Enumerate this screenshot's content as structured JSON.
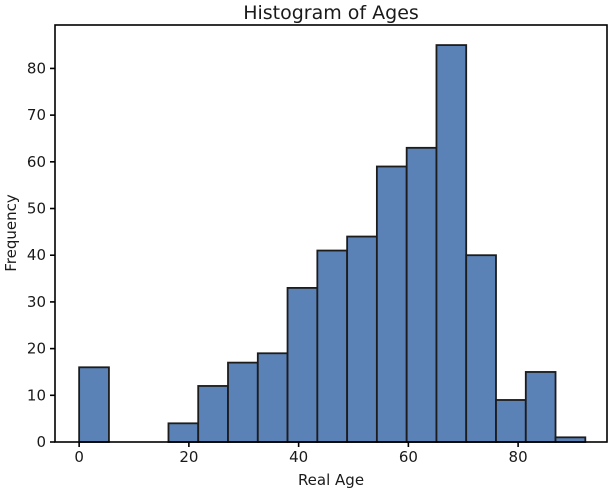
{
  "chart_data": {
    "type": "bar",
    "subtype": "histogram",
    "title": "Histogram of Ages",
    "xlabel": "Real Age",
    "ylabel": "Frequency",
    "bin_edges": [
      0,
      5.43,
      10.85,
      16.28,
      21.7,
      27.13,
      32.56,
      37.98,
      43.41,
      48.84,
      54.26,
      59.69,
      65.12,
      70.54,
      75.97,
      81.4,
      86.82,
      92.25
    ],
    "counts": [
      16,
      0,
      0,
      4,
      12,
      17,
      19,
      33,
      41,
      44,
      59,
      63,
      85,
      40,
      9,
      15,
      1
    ],
    "xticks": [
      0,
      20,
      40,
      60,
      80
    ],
    "yticks": [
      0,
      10,
      20,
      30,
      40,
      50,
      60,
      70,
      80
    ],
    "xlim": [
      -4.4,
      96.2
    ],
    "ylim": [
      0,
      89.3
    ],
    "grid": false,
    "legend": null,
    "colors": {
      "bar_fill": "#5b82b6",
      "bar_edge": "#1c1c1c",
      "axis": "#000000",
      "background": "#ffffff",
      "text": "#1a1a1a"
    }
  }
}
